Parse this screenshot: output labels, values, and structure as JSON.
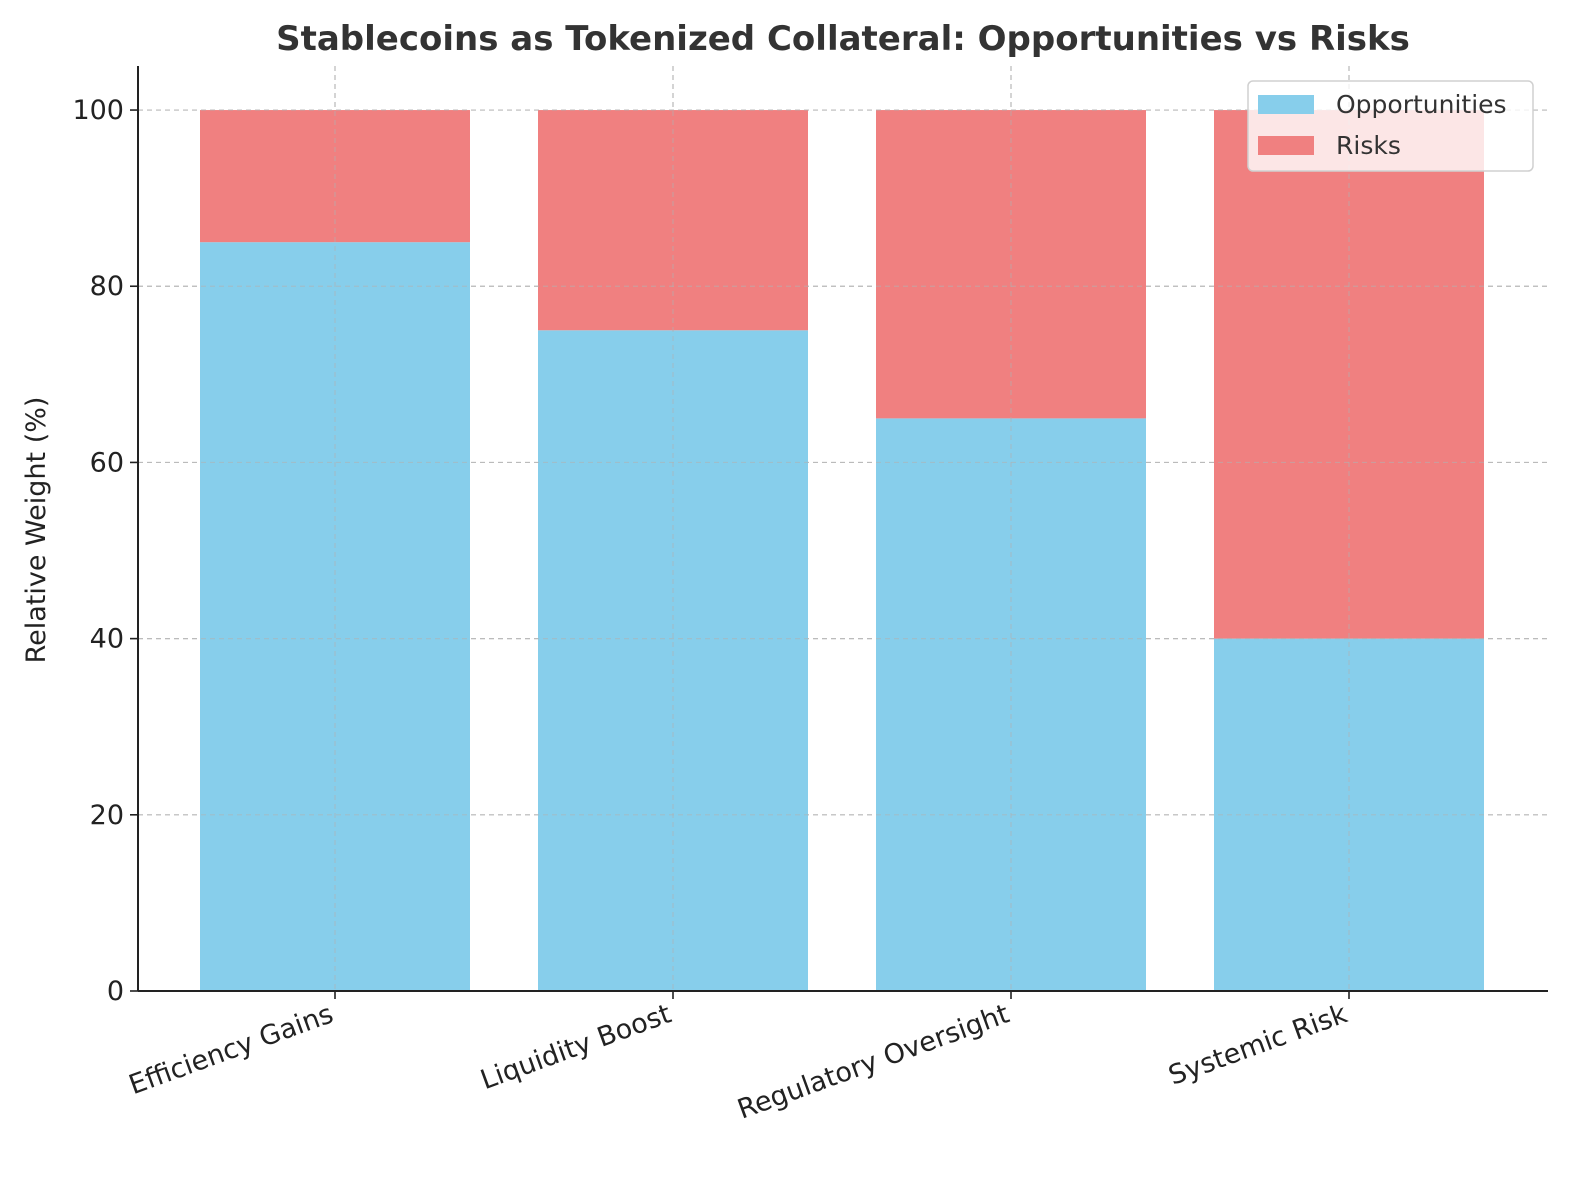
{
  "chart_data": {
    "type": "bar",
    "stacked": true,
    "title": "Stablecoins as Tokenized Collateral: Opportunities vs Risks",
    "xlabel": "",
    "ylabel": "Relative Weight (%)",
    "categories": [
      "Efficiency Gains",
      "Liquidity Boost",
      "Regulatory Oversight",
      "Systemic Risk"
    ],
    "series": [
      {
        "name": "Opportunities",
        "values": [
          85,
          75,
          65,
          40
        ],
        "color": "#87ceeb"
      },
      {
        "name": "Risks",
        "values": [
          15,
          25,
          35,
          60
        ],
        "color": "#f08080"
      }
    ],
    "ylim": [
      0,
      105
    ],
    "yticks": [
      0,
      20,
      40,
      60,
      80,
      100
    ],
    "grid": true,
    "legend": {
      "position": "top-right"
    }
  }
}
